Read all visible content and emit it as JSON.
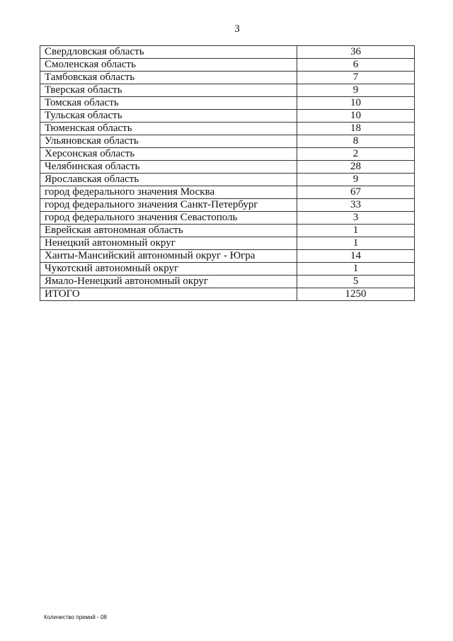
{
  "page_number": "3",
  "table": {
    "rows": [
      {
        "name": "Свердловская область",
        "value": "36"
      },
      {
        "name": "Смоленская область",
        "value": "6"
      },
      {
        "name": "Тамбовская область",
        "value": "7"
      },
      {
        "name": "Тверская область",
        "value": "9"
      },
      {
        "name": "Томская область",
        "value": "10"
      },
      {
        "name": "Тульская область",
        "value": "10"
      },
      {
        "name": "Тюменская область",
        "value": "18"
      },
      {
        "name": "Ульяновская область",
        "value": "8"
      },
      {
        "name": "Херсонская область",
        "value": "2"
      },
      {
        "name": "Челябинская область",
        "value": "28"
      },
      {
        "name": "Ярославская область",
        "value": "9"
      },
      {
        "name": "город федерального значения Москва",
        "value": "67"
      },
      {
        "name": "город федерального значения Санкт-Петербург",
        "value": "33"
      },
      {
        "name": "город федерального значения Севастополь",
        "value": "3"
      },
      {
        "name": "Еврейская автономная область",
        "value": "1"
      },
      {
        "name": "Ненецкий автономный округ",
        "value": "1"
      },
      {
        "name": "Ханты-Мансийский автономный округ - Югра",
        "value": "14"
      },
      {
        "name": "Чукотский автономный округ",
        "value": "1"
      },
      {
        "name": "Ямало-Ненецкий автономный округ",
        "value": "5"
      },
      {
        "name": "ИТОГО",
        "value": "1250"
      }
    ]
  },
  "footer": "Количество премий - 08"
}
